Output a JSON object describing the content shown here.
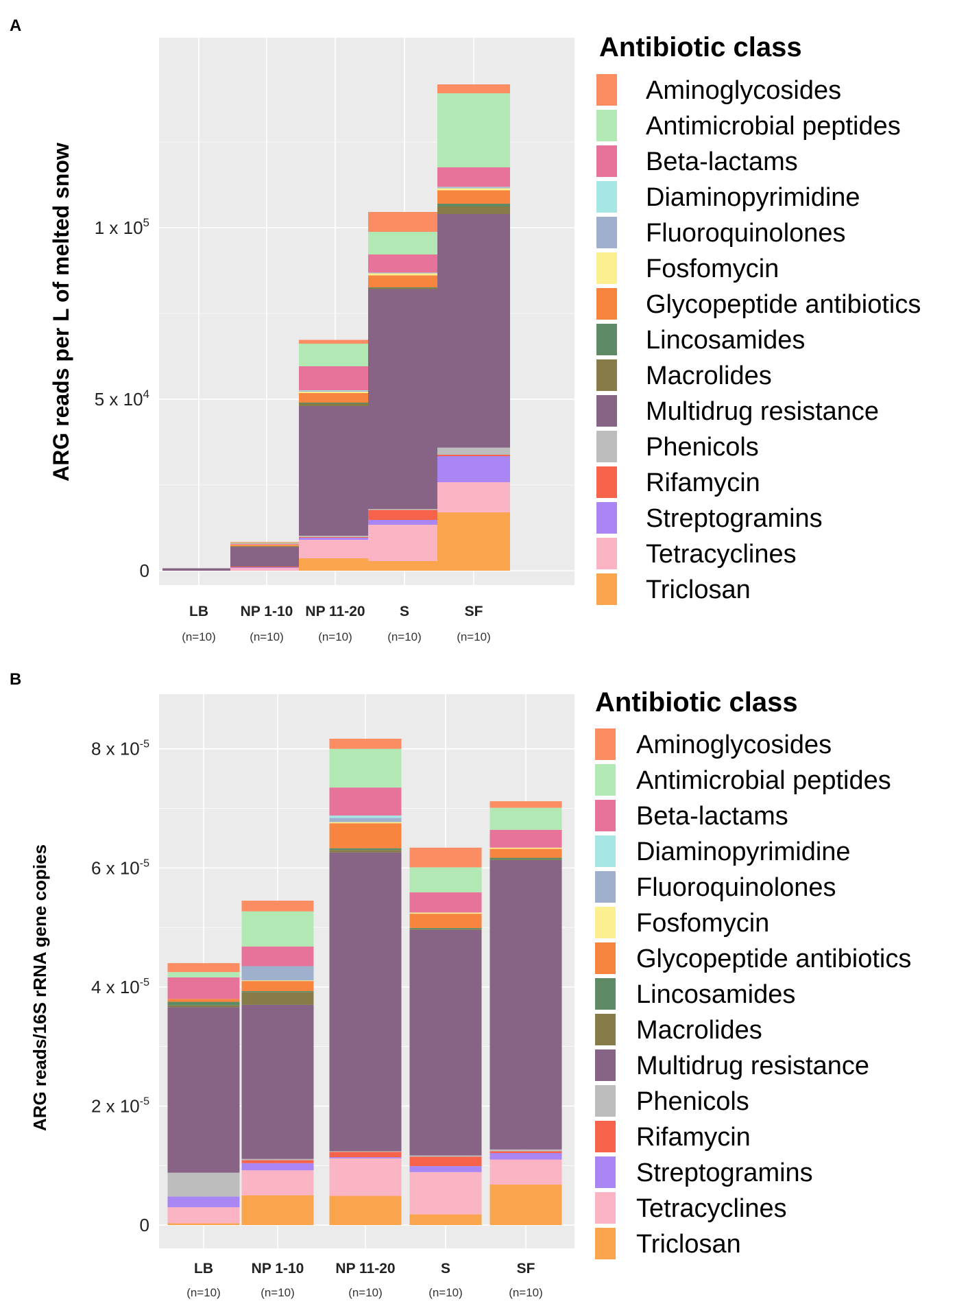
{
  "figure": {
    "panel_a_letter": "A",
    "panel_b_letter": "B"
  },
  "colors": {
    "Aminoglycosides": "#FC8D62",
    "Antimicrobial peptides": "#B2E8B4",
    "Beta-lactams": "#E7739A",
    "Diaminopyrimidine": "#A6E6E4",
    "Fluoroquinolones": "#9EB0CC",
    "Fosfomycin": "#FCEF8F",
    "Glycopeptide antibiotics": "#F8853F",
    "Lincosamides": "#5E8A65",
    "Macrolides": "#877C47",
    "Multidrug resistance": "#876386",
    "Phenicols": "#BDBDBD",
    "Rifamycin": "#F6634A",
    "Streptogramins": "#A986F4",
    "Tetracyclines": "#FBB4C3",
    "Triclosan": "#FBA44E"
  },
  "chart_data": [
    {
      "type": "bar",
      "stacked": true,
      "panel": "A",
      "title": "",
      "xlabel": "",
      "ylabel": "ARG reads per L of melted snow",
      "ylim": [
        0,
        148000
      ],
      "yticks": [
        {
          "value": 0,
          "base": "0",
          "exp": ""
        },
        {
          "value": 50000,
          "base": "5 x 10",
          "exp": "4"
        },
        {
          "value": 100000,
          "base": "1 x 10",
          "exp": "5"
        }
      ],
      "categories": [
        "LB",
        "NP 1-10",
        "NP 11-20",
        "S",
        "SF"
      ],
      "sample_sizes": [
        "(n=10)",
        "(n=10)",
        "(n=10)",
        "(n=10)",
        "(n=10)"
      ],
      "legend_title": "Antibiotic class",
      "series": [
        {
          "name": "Triclosan",
          "values": [
            0,
            0,
            3600,
            2800,
            17000
          ]
        },
        {
          "name": "Tetracyclines",
          "values": [
            0,
            800,
            5400,
            10600,
            8800
          ]
        },
        {
          "name": "Streptogramins",
          "values": [
            0,
            200,
            600,
            1400,
            7600
          ]
        },
        {
          "name": "Rifamycin",
          "values": [
            0,
            200,
            200,
            2900,
            400
          ]
        },
        {
          "name": "Phenicols",
          "values": [
            0,
            0,
            400,
            300,
            2100
          ]
        },
        {
          "name": "Multidrug resistance",
          "values": [
            700,
            5700,
            37800,
            64100,
            68100
          ]
        },
        {
          "name": "Macrolides",
          "values": [
            0,
            100,
            700,
            300,
            2200
          ]
        },
        {
          "name": "Lincosamides",
          "values": [
            0,
            100,
            300,
            200,
            800
          ]
        },
        {
          "name": "Glycopeptide antibiotics",
          "values": [
            0,
            400,
            2800,
            3500,
            3900
          ]
        },
        {
          "name": "Fosfomycin",
          "values": [
            0,
            100,
            400,
            600,
            600
          ]
        },
        {
          "name": "Fluoroquinolones",
          "values": [
            0,
            0,
            200,
            100,
            200
          ]
        },
        {
          "name": "Diaminopyrimidine",
          "values": [
            0,
            0,
            200,
            100,
            200
          ]
        },
        {
          "name": "Beta-lactams",
          "values": [
            0,
            300,
            7000,
            5300,
            5700
          ]
        },
        {
          "name": "Antimicrobial peptides",
          "values": [
            0,
            300,
            6600,
            6600,
            21600
          ]
        },
        {
          "name": "Aminoglycosides",
          "values": [
            0,
            200,
            1100,
            5800,
            2600
          ]
        }
      ]
    },
    {
      "type": "bar",
      "stacked": true,
      "panel": "B",
      "title": "",
      "xlabel": "",
      "ylabel": "ARG reads/16S rRNA gene copies",
      "ylim": [
        0,
        8.55e-05
      ],
      "yticks": [
        {
          "value": 0,
          "base": "0",
          "exp": ""
        },
        {
          "value": 2e-05,
          "base": "2 x 10",
          "exp": "-5"
        },
        {
          "value": 4e-05,
          "base": "4 x 10",
          "exp": "-5"
        },
        {
          "value": 6e-05,
          "base": "6 x 10",
          "exp": "-5"
        },
        {
          "value": 8e-05,
          "base": "8 x 10",
          "exp": "-5"
        }
      ],
      "categories": [
        "LB",
        "NP 1-10",
        "NP 11-20",
        "S",
        "SF"
      ],
      "sample_sizes": [
        "(n=10)",
        "(n=10)",
        "(n=10)",
        "(n=10)",
        "(n=10)"
      ],
      "legend_title": "Antibiotic class",
      "series": [
        {
          "name": "Triclosan",
          "values": [
            3e-07,
            5e-06,
            4.9e-06,
            1.8e-06,
            6.8e-06
          ]
        },
        {
          "name": "Tetracyclines",
          "values": [
            2.7e-06,
            4.2e-06,
            6.3e-06,
            7.1e-06,
            4.2e-06
          ]
        },
        {
          "name": "Streptogramins",
          "values": [
            1.8e-06,
            1.2e-06,
            2e-07,
            1e-06,
            1.1e-06
          ]
        },
        {
          "name": "Rifamycin",
          "values": [
            0.0,
            5e-07,
            9e-07,
            1.6e-06,
            3e-07
          ]
        },
        {
          "name": "Phenicols",
          "values": [
            4e-06,
            2e-07,
            1e-07,
            2e-07,
            3e-07
          ]
        },
        {
          "name": "Multidrug resistance",
          "values": [
            2.78e-05,
            2.59e-05,
            5.02e-05,
            3.79e-05,
            4.86e-05
          ]
        },
        {
          "name": "Macrolides",
          "values": [
            3e-07,
            2.1e-06,
            4e-07,
            1e-07,
            1e-07
          ]
        },
        {
          "name": "Lincosamides",
          "values": [
            6e-07,
            2e-07,
            3e-07,
            2e-07,
            3e-07
          ]
        },
        {
          "name": "Glycopeptide antibiotics",
          "values": [
            5e-07,
            1.7e-06,
            4.2e-06,
            2.4e-06,
            1.5e-06
          ]
        },
        {
          "name": "Fosfomycin",
          "values": [
            0.0,
            1e-07,
            2e-07,
            2e-07,
            2e-07
          ]
        },
        {
          "name": "Fluoroquinolones",
          "values": [
            0.0,
            2.4e-06,
            7e-07,
            0.0,
            0.0
          ]
        },
        {
          "name": "Diaminopyrimidine",
          "values": [
            0.0,
            0.0,
            4e-07,
            0.0,
            0.0
          ]
        },
        {
          "name": "Beta-lactams",
          "values": [
            3.6e-06,
            3.3e-06,
            4.7e-06,
            3.4e-06,
            3e-06
          ]
        },
        {
          "name": "Antimicrobial peptides",
          "values": [
            9e-07,
            5.9e-06,
            6.5e-06,
            4.2e-06,
            3.7e-06
          ]
        },
        {
          "name": "Aminoglycosides",
          "values": [
            1.5e-06,
            1.8e-06,
            1.7e-06,
            3.3e-06,
            1.1e-06
          ]
        }
      ]
    }
  ]
}
